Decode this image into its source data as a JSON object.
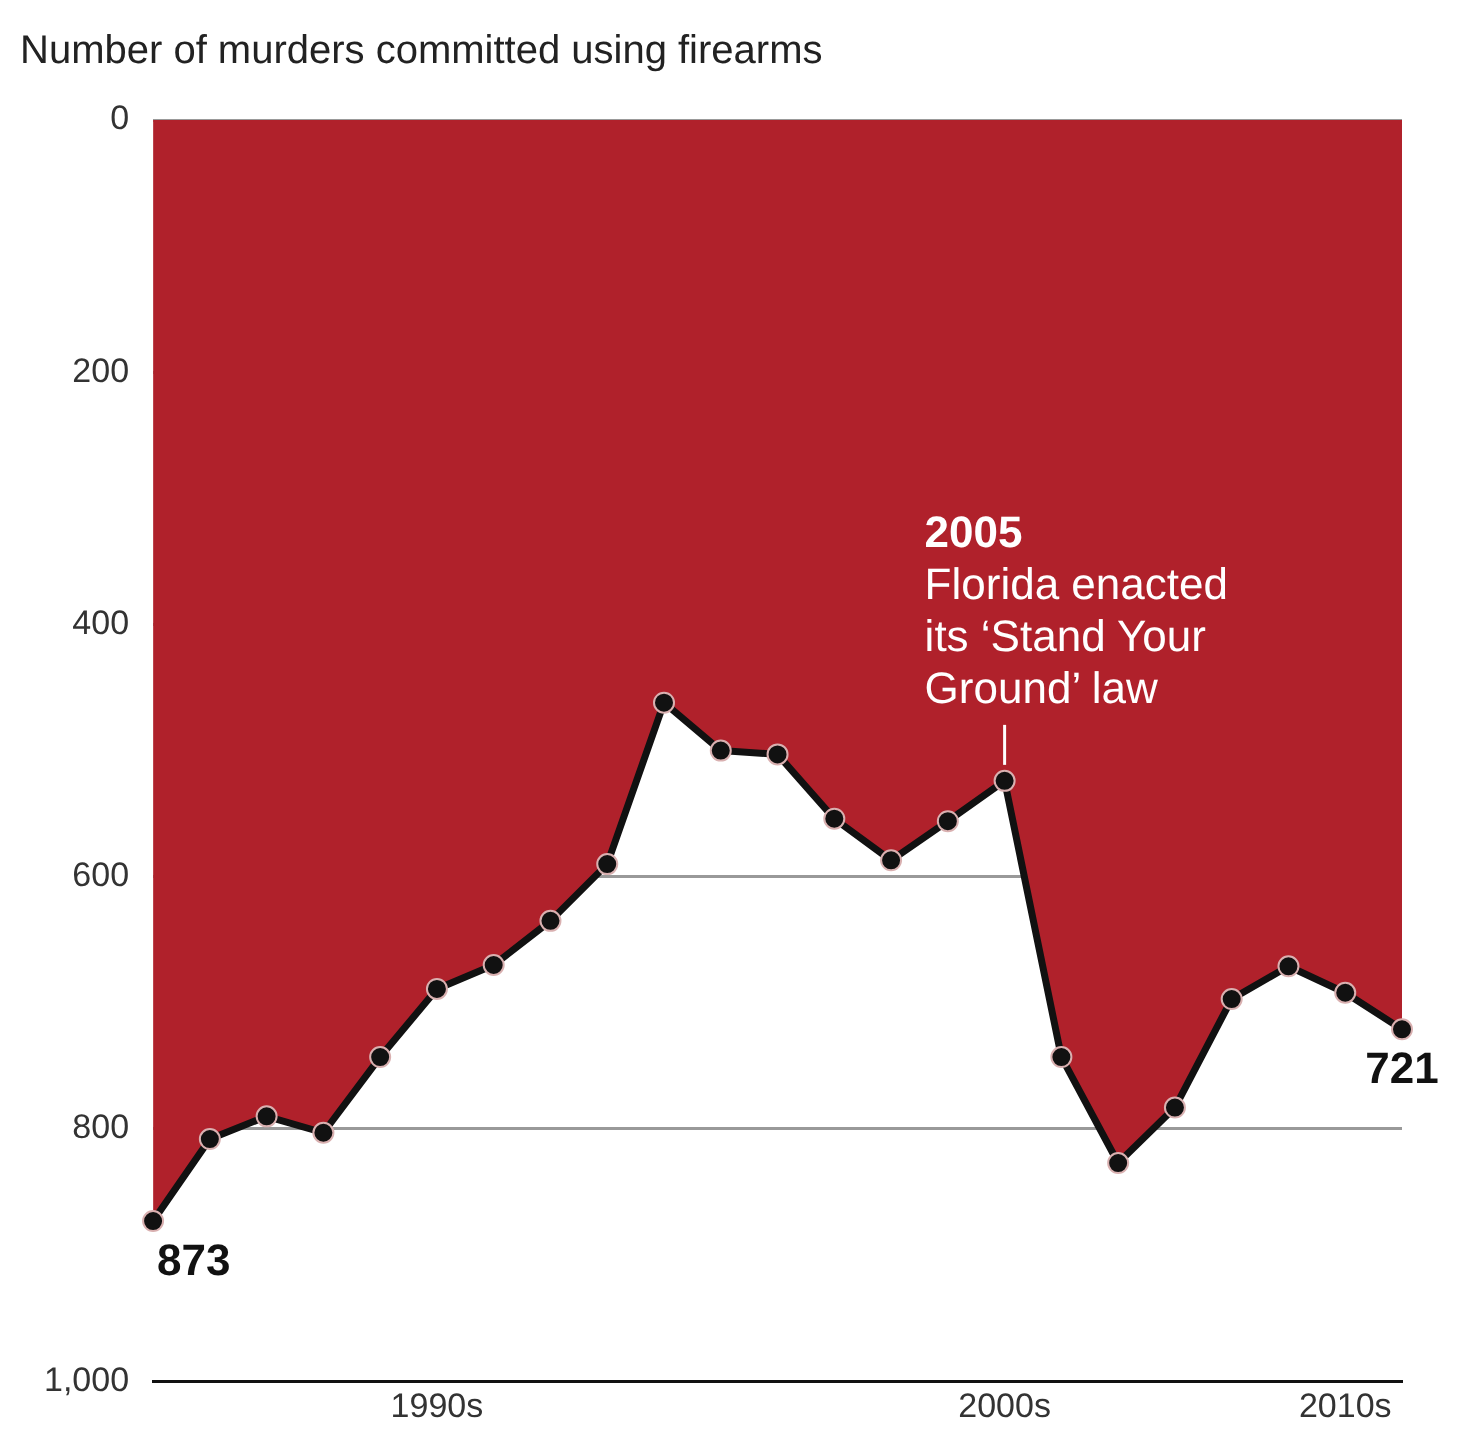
{
  "chart_data": {
    "type": "area",
    "title": "Number of murders committed using firearms",
    "categories": [
      null,
      null,
      null,
      null,
      null,
      "1990s",
      null,
      null,
      null,
      null,
      null,
      null,
      null,
      null,
      null,
      "2000s",
      null,
      null,
      null,
      null,
      null,
      "2010s",
      null
    ],
    "series": [
      {
        "color": "#b0212b",
        "values": [
          873,
          808,
          790,
          803,
          743,
          689,
          670,
          635,
          590,
          462,
          500,
          503,
          554,
          587,
          556,
          524,
          743,
          827,
          783,
          697,
          671,
          692,
          721
        ],
        "value_labels": [
          "873",
          null,
          null,
          null,
          null,
          null,
          null,
          null,
          null,
          null,
          null,
          null,
          null,
          null,
          null,
          null,
          null,
          null,
          null,
          null,
          null,
          null,
          "721"
        ]
      }
    ],
    "ylim": [
      1000,
      0
    ],
    "yticks": [
      0,
      200,
      400,
      600,
      800,
      {
        "value": 1000,
        "label": "1,000"
      }
    ],
    "grid": "y",
    "marker": "circle",
    "legend": false,
    "annotations": [
      {
        "text": "2005\nFlorida enacted\nits ‘Stand Your\nGround’ law",
        "x": "2000s",
        "y": 524
      }
    ]
  }
}
